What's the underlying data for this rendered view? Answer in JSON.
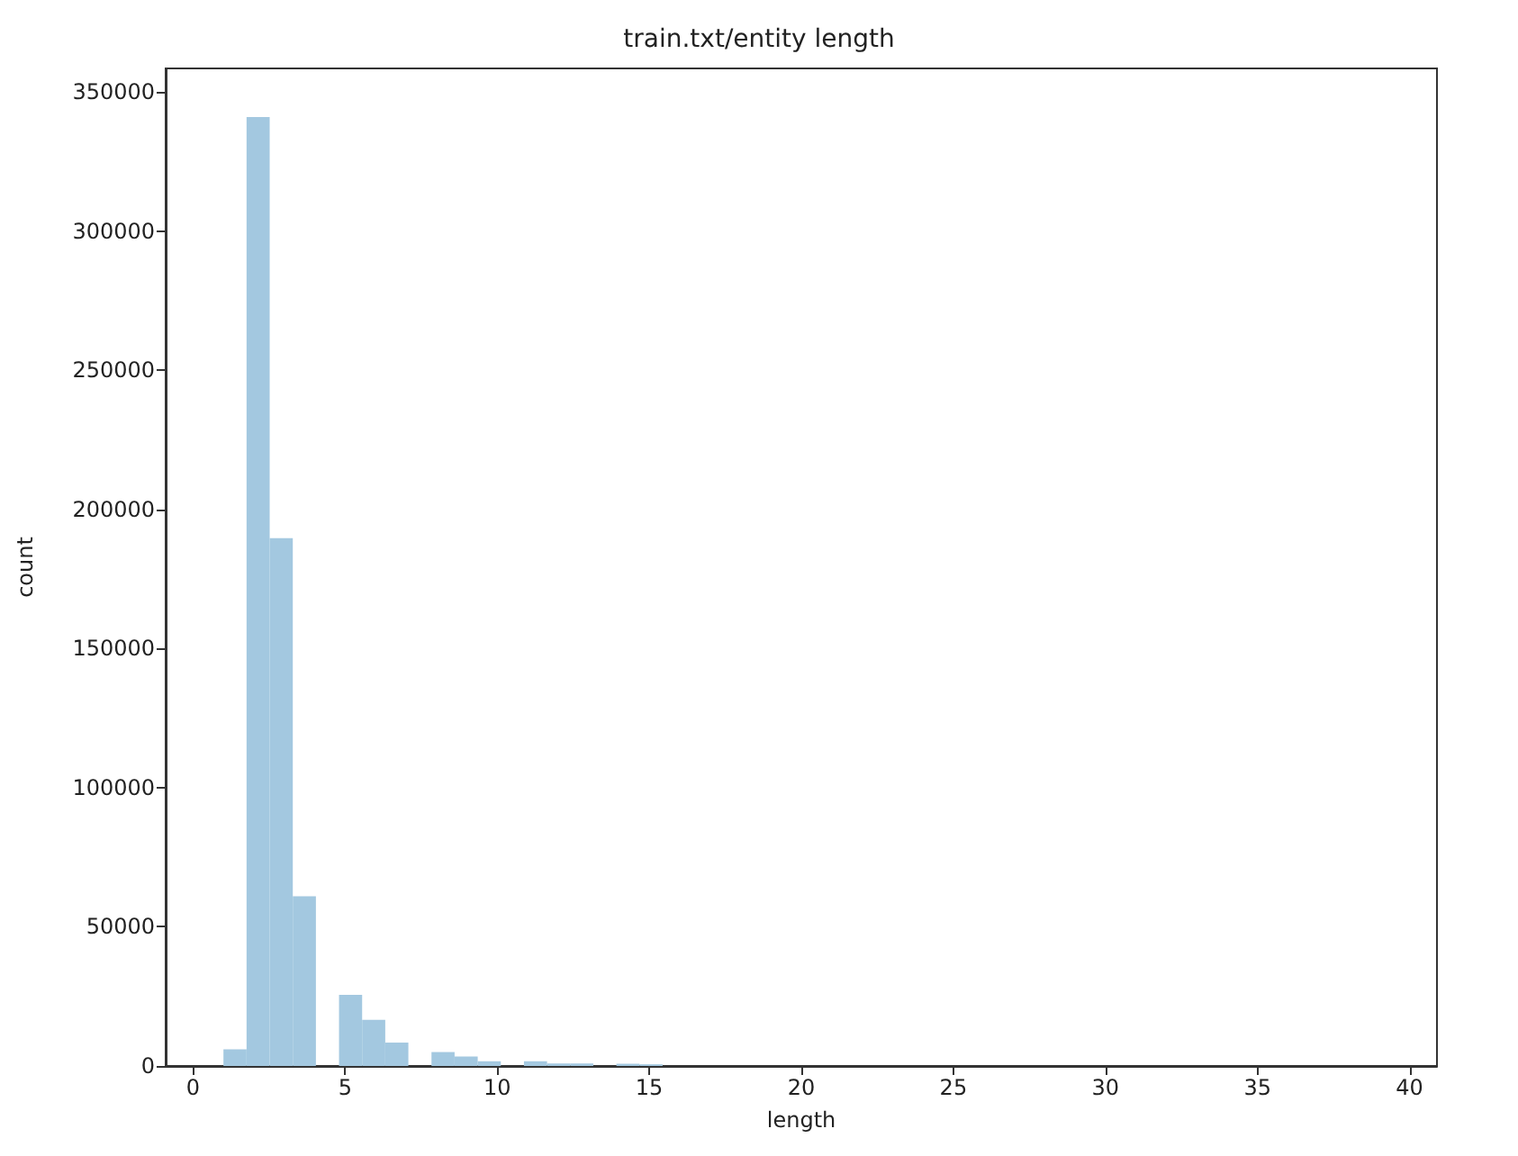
{
  "chart_data": {
    "type": "histogram",
    "title": "train.txt/entity length",
    "xlabel": "length",
    "ylabel": "count",
    "color": "#a3c8e0",
    "bins": [
      1,
      1.76,
      2.52,
      3.28,
      4.04,
      4.8,
      5.56,
      6.32,
      7.08,
      7.84,
      8.6,
      9.36,
      10.12,
      10.88,
      11.64,
      12.4,
      13.16,
      13.92,
      14.68,
      15.44,
      16.2,
      16.96,
      17.72,
      18.48,
      19.24,
      20,
      20.76,
      21.52,
      22.28,
      23.04,
      23.8,
      24.56,
      25.32,
      26.08,
      26.84,
      27.6,
      28.36,
      29.12,
      29.88,
      30.64,
      31.4,
      32.16,
      32.92,
      33.68,
      34.44,
      35.2,
      35.96,
      36.72,
      37.48,
      38.24,
      39
    ],
    "values": [
      6000,
      341000,
      189700,
      61000,
      0,
      25600,
      16600,
      8400,
      0,
      5000,
      3400,
      1700,
      0,
      1700,
      900,
      900,
      0,
      800,
      600,
      0,
      0,
      0,
      0,
      0,
      0,
      0,
      0,
      0,
      0,
      0,
      0,
      0,
      0,
      0,
      0,
      0,
      0,
      0,
      0,
      0,
      0,
      0,
      0,
      0,
      0,
      0,
      0,
      0,
      0,
      0
    ],
    "xlim": [
      -0.9,
      40.9
    ],
    "xticks": [
      0,
      5,
      10,
      15,
      20,
      25,
      30,
      35,
      40
    ],
    "ylim": [
      0,
      358500
    ],
    "yticks": [
      0,
      50000,
      100000,
      150000,
      200000,
      250000,
      300000,
      350000
    ],
    "grid": false
  }
}
